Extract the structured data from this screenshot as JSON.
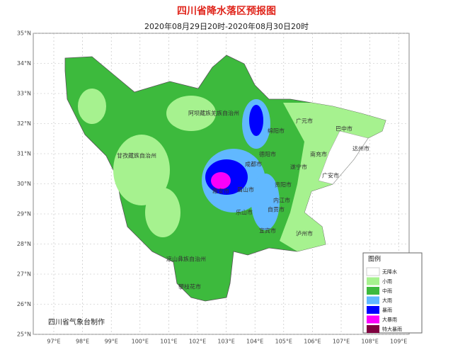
{
  "header": {
    "title": "四川省降水落区预报图",
    "subtitle": "2020年08月29日20时-2020年08月30日20时"
  },
  "axes": {
    "lat_labels": [
      "35°N",
      "34°N",
      "33°N",
      "32°N",
      "31°N",
      "30°N",
      "29°N",
      "28°N",
      "27°N",
      "26°N",
      "25°N"
    ],
    "lon_labels": [
      "97°E",
      "98°E",
      "99°E",
      "100°E",
      "101°E",
      "102°E",
      "103°E",
      "104°E",
      "105°E",
      "106°E",
      "107°E",
      "108°E",
      "109°E"
    ]
  },
  "regions": [
    "阿坝藏族羌族自治州",
    "甘孜藏族自治州",
    "凉山彝族自治州",
    "攀枝花市",
    "广元市",
    "巴中市",
    "达州市",
    "绵阳市",
    "德阳市",
    "南充市",
    "成都市",
    "遂宁市",
    "雅安市",
    "眉山市",
    "资阳市",
    "广安市",
    "内江市",
    "乐山市",
    "自贡市",
    "宜宾市",
    "泸州市"
  ],
  "legend": {
    "title": "图例",
    "items": [
      {
        "label": "无降水",
        "color": "#ffffff"
      },
      {
        "label": "小雨",
        "color": "#a6f28f"
      },
      {
        "label": "中雨",
        "color": "#3dba3d"
      },
      {
        "label": "大雨",
        "color": "#61b8ff"
      },
      {
        "label": "暴雨",
        "color": "#0000fe"
      },
      {
        "label": "大暴雨",
        "color": "#fa00fa"
      },
      {
        "label": "特大暴雨",
        "color": "#800040"
      }
    ]
  },
  "credit": "四川省气象台制作"
}
